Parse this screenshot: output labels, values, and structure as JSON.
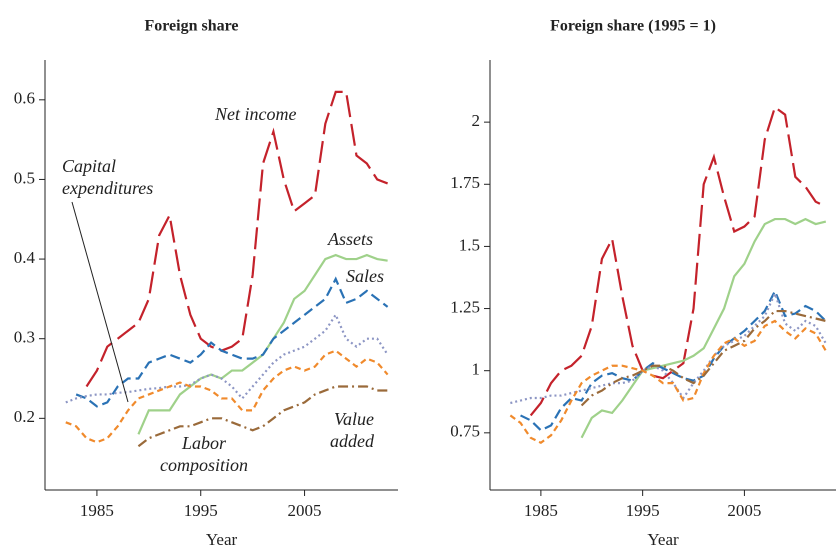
{
  "chart_data": [
    {
      "type": "line",
      "title": "Foreign share",
      "x_label": "Year",
      "x": [
        1982,
        1983,
        1984,
        1985,
        1986,
        1987,
        1988,
        1989,
        1990,
        1991,
        1992,
        1993,
        1994,
        1995,
        1996,
        1997,
        1998,
        1999,
        2000,
        2001,
        2002,
        2003,
        2004,
        2005,
        2006,
        2007,
        2008,
        2009,
        2010,
        2011,
        2012,
        2013
      ],
      "xlim": [
        1980,
        2014
      ],
      "xticks": [
        1985,
        1995,
        2005
      ],
      "ylim": [
        0.11,
        0.65
      ],
      "yticks": [
        0.2,
        0.3,
        0.4,
        0.5,
        0.6
      ],
      "series": [
        {
          "name": "Net income",
          "color": "#c4222b",
          "values": [
            null,
            null,
            0.24,
            0.26,
            0.29,
            0.3,
            0.31,
            0.32,
            0.35,
            0.43,
            0.455,
            0.38,
            0.33,
            0.3,
            0.29,
            0.285,
            0.29,
            0.3,
            0.38,
            0.52,
            0.56,
            0.5,
            0.46,
            0.47,
            0.48,
            0.57,
            0.61,
            0.61,
            0.53,
            0.52,
            0.5,
            0.495
          ]
        },
        {
          "name": "Assets",
          "color": "#9fd18a",
          "values": [
            null,
            null,
            null,
            null,
            null,
            null,
            null,
            0.18,
            0.21,
            0.21,
            0.21,
            0.23,
            0.24,
            0.25,
            0.255,
            0.25,
            0.26,
            0.26,
            0.27,
            0.28,
            0.3,
            0.32,
            0.35,
            0.36,
            0.38,
            0.4,
            0.405,
            0.4,
            0.4,
            0.405,
            0.4,
            0.398
          ]
        },
        {
          "name": "Sales",
          "color": "#2a72b5",
          "values": [
            null,
            0.23,
            0.225,
            0.215,
            0.22,
            0.24,
            0.25,
            0.25,
            0.27,
            0.275,
            0.28,
            0.275,
            0.27,
            0.28,
            0.295,
            0.285,
            0.28,
            0.275,
            0.275,
            0.28,
            0.3,
            0.31,
            0.32,
            0.33,
            0.34,
            0.35,
            0.375,
            0.345,
            0.35,
            0.36,
            0.35,
            0.34
          ]
        },
        {
          "name": "Value added",
          "color": "#8d96c4",
          "values": [
            0.22,
            0.225,
            0.228,
            0.23,
            0.23,
            0.232,
            0.233,
            0.235,
            0.237,
            0.238,
            0.24,
            0.24,
            0.242,
            0.25,
            0.255,
            0.25,
            0.24,
            0.225,
            0.24,
            0.255,
            0.27,
            0.28,
            0.285,
            0.29,
            0.3,
            0.31,
            0.33,
            0.3,
            0.29,
            0.3,
            0.3,
            0.28
          ]
        },
        {
          "name": "Capital expenditures",
          "color": "#f08a2c",
          "values": [
            0.195,
            0.19,
            0.175,
            0.17,
            0.175,
            0.19,
            0.21,
            0.225,
            0.23,
            0.235,
            0.24,
            0.245,
            0.24,
            0.24,
            0.235,
            0.225,
            0.225,
            0.21,
            0.21,
            0.235,
            0.25,
            0.26,
            0.265,
            0.26,
            0.265,
            0.28,
            0.285,
            0.275,
            0.265,
            0.275,
            0.27,
            0.255
          ]
        },
        {
          "name": "Labor composition",
          "color": "#9a6a3a",
          "values": [
            null,
            null,
            null,
            null,
            null,
            null,
            null,
            0.165,
            0.175,
            0.18,
            0.185,
            0.19,
            0.19,
            0.195,
            0.2,
            0.2,
            0.195,
            0.19,
            0.185,
            0.19,
            0.2,
            0.21,
            0.215,
            0.22,
            0.23,
            0.235,
            0.24,
            0.24,
            0.24,
            0.24,
            0.235,
            0.235
          ]
        }
      ]
    },
    {
      "type": "line",
      "title": "Foreign share (1995 = 1)",
      "x_label": "Year",
      "x": [
        1982,
        1983,
        1984,
        1985,
        1986,
        1987,
        1988,
        1989,
        1990,
        1991,
        1992,
        1993,
        1994,
        1995,
        1996,
        1997,
        1998,
        1999,
        2000,
        2001,
        2002,
        2003,
        2004,
        2005,
        2006,
        2007,
        2008,
        2009,
        2010,
        2011,
        2012,
        2013
      ],
      "xlim": [
        1980,
        2014
      ],
      "xticks": [
        1985,
        1995,
        2005
      ],
      "ylim": [
        0.52,
        2.25
      ],
      "yticks": [
        0.75,
        1,
        1.25,
        1.5,
        1.75,
        2
      ],
      "series": [
        {
          "color": "#c4222b",
          "values": [
            null,
            null,
            0.82,
            0.87,
            0.95,
            1.0,
            1.02,
            1.06,
            1.18,
            1.45,
            1.53,
            1.3,
            1.1,
            1.0,
            0.98,
            0.97,
            1.0,
            1.03,
            1.25,
            1.75,
            1.86,
            1.7,
            1.56,
            1.58,
            1.62,
            1.93,
            2.06,
            2.03,
            1.78,
            1.74,
            1.68,
            1.66
          ]
        },
        {
          "color": "#9fd18a",
          "values": [
            null,
            null,
            null,
            null,
            null,
            null,
            null,
            0.73,
            0.81,
            0.84,
            0.83,
            0.88,
            0.94,
            1.0,
            1.01,
            1.02,
            1.03,
            1.04,
            1.06,
            1.09,
            1.17,
            1.25,
            1.38,
            1.43,
            1.52,
            1.59,
            1.61,
            1.61,
            1.59,
            1.61,
            1.59,
            1.6
          ]
        },
        {
          "color": "#2a72b5",
          "values": [
            null,
            0.82,
            0.8,
            0.76,
            0.78,
            0.85,
            0.89,
            0.88,
            0.95,
            0.98,
            0.99,
            0.97,
            0.96,
            1.0,
            1.03,
            1.01,
            0.99,
            0.97,
            0.96,
            0.98,
            1.05,
            1.1,
            1.13,
            1.16,
            1.2,
            1.24,
            1.32,
            1.22,
            1.23,
            1.26,
            1.24,
            1.2
          ]
        },
        {
          "color": "#8d96c4",
          "values": [
            0.87,
            0.88,
            0.89,
            0.89,
            0.9,
            0.9,
            0.91,
            0.92,
            0.93,
            0.94,
            0.95,
            0.95,
            0.96,
            1.0,
            1.02,
            1.0,
            0.95,
            0.89,
            0.95,
            1.0,
            1.06,
            1.1,
            1.12,
            1.14,
            1.18,
            1.22,
            1.31,
            1.19,
            1.16,
            1.2,
            1.18,
            1.11
          ]
        },
        {
          "color": "#f08a2c",
          "values": [
            0.82,
            0.79,
            0.73,
            0.71,
            0.74,
            0.8,
            0.88,
            0.95,
            0.98,
            1.0,
            1.02,
            1.02,
            1.01,
            1.0,
            0.98,
            0.95,
            0.95,
            0.88,
            0.89,
            0.99,
            1.06,
            1.11,
            1.13,
            1.1,
            1.12,
            1.18,
            1.2,
            1.16,
            1.13,
            1.17,
            1.15,
            1.08
          ]
        },
        {
          "color": "#9a6a3a",
          "values": [
            null,
            null,
            null,
            null,
            null,
            null,
            null,
            0.86,
            0.9,
            0.92,
            0.95,
            0.97,
            0.98,
            1.0,
            1.02,
            1.02,
            1.0,
            0.97,
            0.95,
            0.98,
            1.03,
            1.08,
            1.1,
            1.12,
            1.17,
            1.2,
            1.24,
            1.24,
            1.23,
            1.22,
            1.21,
            1.2
          ]
        }
      ]
    }
  ]
}
